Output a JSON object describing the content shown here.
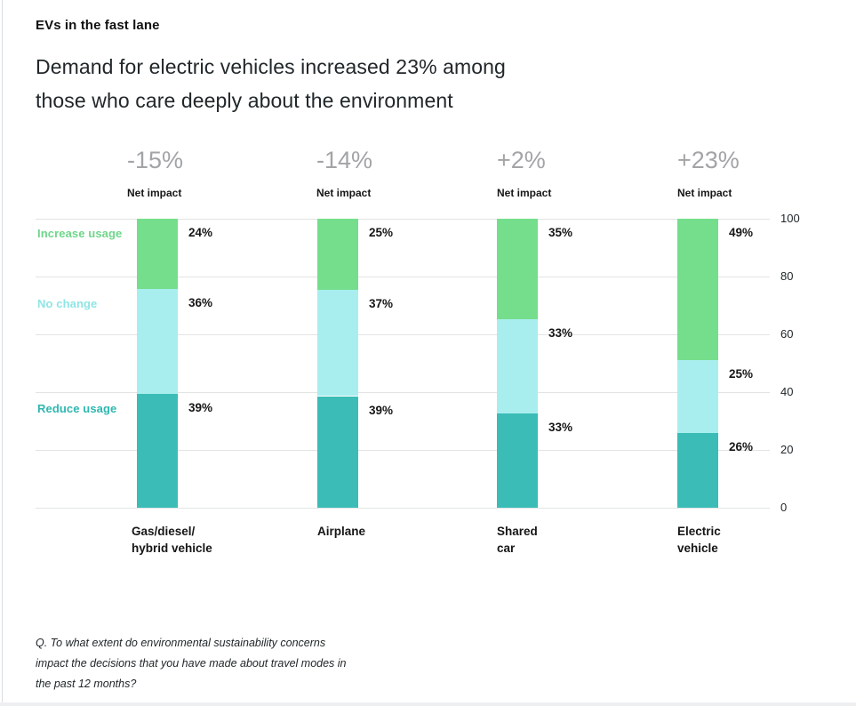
{
  "header": {
    "kicker": "EVs in the fast lane",
    "title_lines": [
      "Demand for electric vehicles increased 23% among",
      "those who care deeply about the environment"
    ]
  },
  "chart_data": {
    "type": "bar",
    "variant": "stacked-vertical-100",
    "title": "EVs in the fast lane",
    "subtitle": "Demand for electric vehicles increased 23% among those who care deeply about the environment",
    "categories": [
      "Gas/diesel/\nhybrid vehicle",
      "Airplane",
      "Shared\ncar",
      "Electric\nvehicle"
    ],
    "net_impact": {
      "caption": "Net impact",
      "values": [
        "-15%",
        "-14%",
        "+2%",
        "+23%"
      ]
    },
    "series": [
      {
        "name": "Increase usage",
        "color": "#74de8c",
        "label_color": "#6fd68a",
        "values": [
          24,
          25,
          35,
          49
        ]
      },
      {
        "name": "No change",
        "color": "#a9eeee",
        "label_color": "#8fe5e5",
        "values": [
          36,
          37,
          33,
          25
        ]
      },
      {
        "name": "Reduce usage",
        "color": "#3bbcb6",
        "label_color": "#2eb7b0",
        "values": [
          39,
          39,
          33,
          26
        ]
      }
    ],
    "value_suffix": "%",
    "y_axis": {
      "min": 0,
      "max": 100,
      "ticks": [
        100,
        80,
        60,
        40,
        20,
        0
      ],
      "side": "right"
    },
    "grid": true,
    "legend_position": "left-row-labels"
  },
  "footnote": {
    "lines": [
      "Q. To what extent do environmental sustainability concerns",
      "impact the decisions that you have made about travel modes in",
      "the past 12 months?"
    ]
  },
  "colors": {
    "increase": "#74de8c",
    "no_change": "#a9eeee",
    "reduce": "#3bbcb6",
    "net_impact_value": "#a2a4a6",
    "grid_line": "#e2e4e4",
    "text_dark": "#161616"
  }
}
